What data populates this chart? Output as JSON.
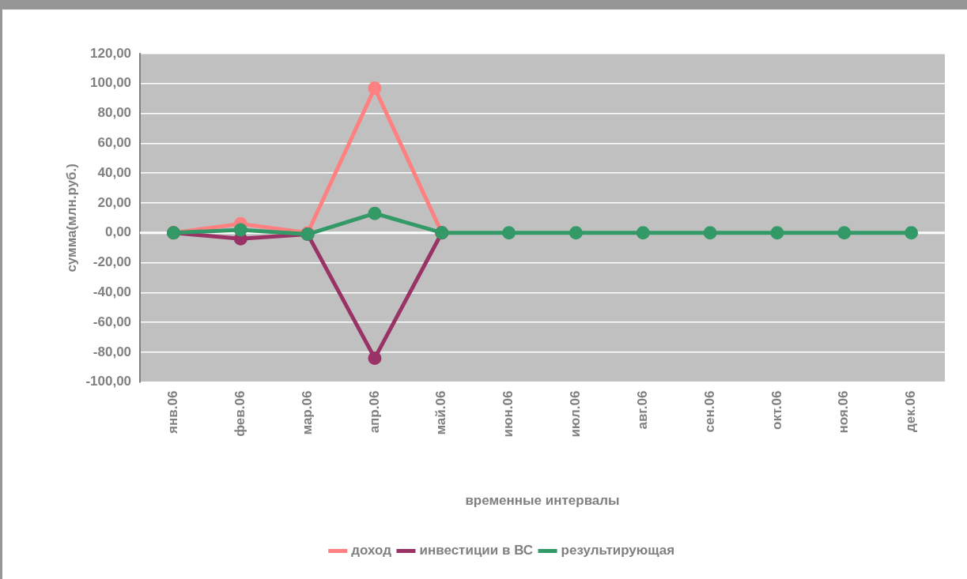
{
  "chart_data": {
    "type": "line",
    "xlabel": "временные интервалы",
    "ylabel": "сумма(млн.руб.)",
    "categories": [
      "янв.06",
      "фев.06",
      "мар.06",
      "апр.06",
      "май.06",
      "июн.06",
      "июл.06",
      "авг.06",
      "сен.06",
      "окт.06",
      "ноя.06",
      "дек.06"
    ],
    "series": [
      {
        "name": "доход",
        "color": "#ff8080",
        "values": [
          0,
          6,
          0,
          97,
          0,
          null,
          null,
          null,
          null,
          null,
          null,
          null
        ]
      },
      {
        "name": "инвестиции в ВС",
        "color": "#993366",
        "values": [
          0,
          -4,
          -1,
          -84,
          0,
          null,
          null,
          null,
          null,
          null,
          null,
          null
        ]
      },
      {
        "name": "результирующая",
        "color": "#339966",
        "values": [
          0,
          2,
          -1,
          13,
          0,
          0,
          0,
          0,
          0,
          0,
          0,
          0
        ]
      }
    ],
    "ylim": [
      -100,
      120
    ],
    "yticks": [
      {
        "value": -100,
        "label": "-100,00"
      },
      {
        "value": -80,
        "label": "-80,00"
      },
      {
        "value": -60,
        "label": "-60,00"
      },
      {
        "value": -40,
        "label": "-40,00"
      },
      {
        "value": -20,
        "label": "-20,00"
      },
      {
        "value": 0,
        "label": "0,00"
      },
      {
        "value": 20,
        "label": "20,00"
      },
      {
        "value": 40,
        "label": "40,00"
      },
      {
        "value": 60,
        "label": "60,00"
      },
      {
        "value": 80,
        "label": "80,00"
      },
      {
        "value": 100,
        "label": "100,00"
      },
      {
        "value": 120,
        "label": "120,00"
      }
    ],
    "grid": "y",
    "legend": "bottom",
    "marker": "circle",
    "line_style": "solid"
  }
}
